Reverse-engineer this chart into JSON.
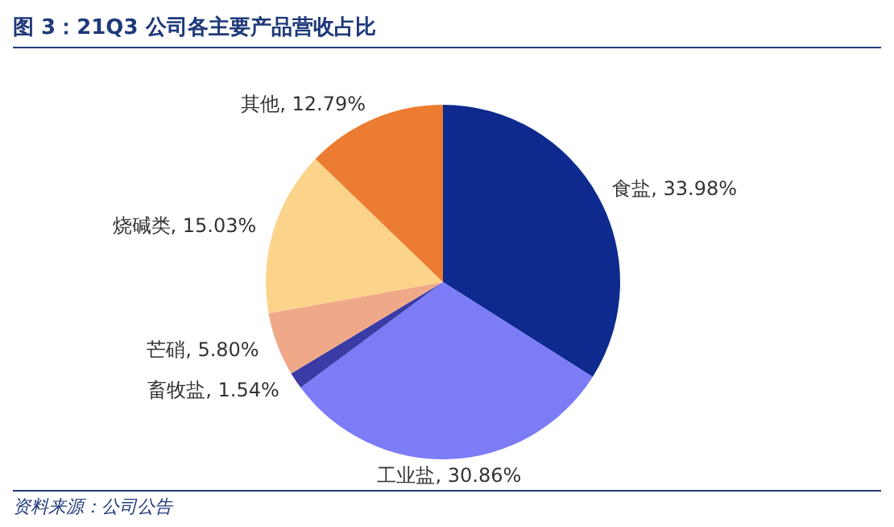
{
  "chart_data": {
    "type": "pie",
    "title": "图 3：21Q3 公司各主要产品营收占比",
    "categories": [
      "食盐",
      "工业盐",
      "畜牧盐",
      "芒硝",
      "烧碱类",
      "其他"
    ],
    "values": [
      33.98,
      30.86,
      1.54,
      5.8,
      15.03,
      12.79
    ],
    "colors": [
      "#0e2a8e",
      "#7b7cf6",
      "#3b3ba6",
      "#f0a988",
      "#fbd38b",
      "#ec7c31"
    ],
    "value_labels": [
      ", 33.98%",
      ", 30.86%",
      ", 1.54%",
      ", 5.80%",
      ", 15.03%",
      ", 12.79%"
    ],
    "annotations": [
      "资料来源：公司公告"
    ]
  }
}
